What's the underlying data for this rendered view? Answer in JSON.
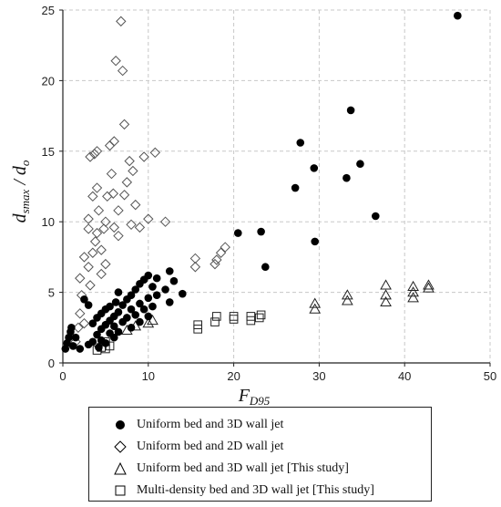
{
  "chart_data": {
    "type": "scatter",
    "title": "",
    "xlabel": "F",
    "xlabel_sub": "D95",
    "ylabel": "d",
    "ylabel_sub1": "smax",
    "ylabel_mid": " / ",
    "ylabel_sub2": "o",
    "xlim": [
      0,
      50
    ],
    "ylim": [
      0,
      25
    ],
    "x_ticks": [
      "0",
      "10",
      "20",
      "30",
      "40",
      "50"
    ],
    "y_ticks": [
      "0",
      "5",
      "10",
      "15",
      "20",
      "25"
    ],
    "grid": true,
    "legend_position": "bottom",
    "series": [
      {
        "name": "Uniform bed and 3D wall jet",
        "marker": "filled-circle",
        "color": "#000000",
        "points": [
          [
            0.3,
            1.0
          ],
          [
            0.5,
            1.4
          ],
          [
            0.7,
            1.8
          ],
          [
            0.9,
            2.2
          ],
          [
            1.0,
            2.5
          ],
          [
            1.2,
            1.2
          ],
          [
            1.5,
            1.8
          ],
          [
            2.0,
            1.0
          ],
          [
            2.5,
            4.5
          ],
          [
            3.0,
            1.3
          ],
          [
            3.0,
            4.1
          ],
          [
            3.5,
            1.5
          ],
          [
            3.5,
            2.8
          ],
          [
            4.0,
            2.0
          ],
          [
            4.0,
            3.2
          ],
          [
            4.2,
            1.1
          ],
          [
            4.5,
            1.6
          ],
          [
            4.5,
            2.4
          ],
          [
            4.5,
            3.5
          ],
          [
            5.0,
            1.4
          ],
          [
            5.0,
            2.7
          ],
          [
            5.0,
            3.8
          ],
          [
            5.5,
            2.1
          ],
          [
            5.5,
            3.0
          ],
          [
            5.5,
            4.0
          ],
          [
            6.0,
            1.8
          ],
          [
            6.0,
            2.6
          ],
          [
            6.0,
            3.3
          ],
          [
            6.2,
            4.3
          ],
          [
            6.5,
            2.2
          ],
          [
            6.5,
            3.6
          ],
          [
            6.5,
            5.0
          ],
          [
            7.0,
            2.9
          ],
          [
            7.0,
            4.1
          ],
          [
            7.5,
            3.2
          ],
          [
            7.5,
            4.5
          ],
          [
            8.0,
            2.5
          ],
          [
            8.0,
            3.8
          ],
          [
            8.0,
            4.8
          ],
          [
            8.5,
            3.4
          ],
          [
            8.5,
            5.2
          ],
          [
            9.0,
            2.9
          ],
          [
            9.0,
            4.2
          ],
          [
            9.0,
            5.6
          ],
          [
            9.5,
            3.8
          ],
          [
            9.5,
            5.9
          ],
          [
            10.0,
            3.3
          ],
          [
            10.0,
            4.6
          ],
          [
            10.0,
            6.2
          ],
          [
            10.5,
            4.0
          ],
          [
            10.5,
            5.4
          ],
          [
            11.0,
            4.8
          ],
          [
            11.0,
            6.0
          ],
          [
            12.0,
            5.2
          ],
          [
            12.5,
            6.5
          ],
          [
            12.5,
            4.3
          ],
          [
            13.0,
            5.8
          ],
          [
            14.0,
            4.9
          ],
          [
            20.5,
            9.2
          ],
          [
            23.2,
            9.3
          ],
          [
            23.7,
            6.8
          ],
          [
            27.2,
            12.4
          ],
          [
            27.8,
            15.6
          ],
          [
            29.4,
            13.8
          ],
          [
            29.5,
            8.6
          ],
          [
            33.2,
            13.1
          ],
          [
            33.7,
            17.9
          ],
          [
            34.8,
            14.1
          ],
          [
            36.6,
            10.4
          ],
          [
            46.2,
            24.6
          ]
        ]
      },
      {
        "name": "Uniform bed and 2D wall jet",
        "marker": "open-diamond",
        "color": "#000000",
        "points": [
          [
            1.5,
            1.5
          ],
          [
            1.8,
            2.5
          ],
          [
            2.0,
            3.5
          ],
          [
            2.0,
            6.0
          ],
          [
            2.2,
            4.8
          ],
          [
            2.5,
            7.5
          ],
          [
            2.5,
            2.8
          ],
          [
            3.0,
            6.8
          ],
          [
            3.0,
            9.5
          ],
          [
            3.0,
            10.2
          ],
          [
            3.2,
            5.5
          ],
          [
            3.2,
            14.6
          ],
          [
            3.5,
            7.8
          ],
          [
            3.5,
            11.8
          ],
          [
            3.7,
            14.8
          ],
          [
            3.8,
            8.6
          ],
          [
            4.0,
            9.2
          ],
          [
            4.0,
            12.4
          ],
          [
            4.0,
            15.0
          ],
          [
            4.2,
            10.8
          ],
          [
            4.5,
            6.3
          ],
          [
            4.5,
            8.0
          ],
          [
            4.8,
            9.5
          ],
          [
            5.0,
            7.0
          ],
          [
            5.0,
            10.0
          ],
          [
            5.2,
            11.8
          ],
          [
            5.5,
            15.4
          ],
          [
            5.7,
            13.4
          ],
          [
            5.9,
            12.0
          ],
          [
            6.0,
            9.6
          ],
          [
            6.0,
            15.7
          ],
          [
            6.2,
            21.4
          ],
          [
            6.5,
            10.8
          ],
          [
            6.5,
            9.0
          ],
          [
            6.8,
            24.2
          ],
          [
            7.0,
            20.7
          ],
          [
            7.2,
            11.9
          ],
          [
            7.2,
            16.9
          ],
          [
            7.5,
            12.8
          ],
          [
            7.8,
            14.3
          ],
          [
            8.0,
            9.8
          ],
          [
            8.2,
            13.6
          ],
          [
            8.5,
            11.2
          ],
          [
            9.0,
            9.6
          ],
          [
            9.5,
            14.6
          ],
          [
            10.0,
            10.2
          ],
          [
            10.8,
            14.9
          ],
          [
            12.0,
            10.0
          ],
          [
            15.5,
            7.4
          ],
          [
            15.5,
            6.8
          ],
          [
            17.8,
            7.0
          ],
          [
            18.0,
            7.3
          ],
          [
            18.5,
            7.8
          ],
          [
            19.0,
            8.2
          ]
        ]
      },
      {
        "name": "Uniform bed and 3D wall jet [This study]",
        "marker": "open-triangle",
        "color": "#000000",
        "points": [
          [
            7.5,
            2.3
          ],
          [
            8.5,
            2.6
          ],
          [
            10.0,
            2.8
          ],
          [
            10.5,
            3.0
          ],
          [
            29.5,
            3.8
          ],
          [
            29.5,
            4.2
          ],
          [
            33.3,
            4.4
          ],
          [
            33.3,
            4.8
          ],
          [
            37.8,
            4.3
          ],
          [
            37.8,
            4.8
          ],
          [
            37.8,
            5.5
          ],
          [
            41.0,
            4.6
          ],
          [
            41.0,
            5.0
          ],
          [
            41.0,
            5.4
          ],
          [
            42.8,
            5.3
          ],
          [
            42.8,
            5.5
          ]
        ]
      },
      {
        "name": "Multi-density bed and 3D wall jet [This study]",
        "marker": "open-square",
        "color": "#000000",
        "points": [
          [
            4.0,
            0.9
          ],
          [
            4.5,
            1.1
          ],
          [
            5.0,
            1.0
          ],
          [
            5.0,
            1.5
          ],
          [
            5.5,
            1.2
          ],
          [
            15.8,
            2.4
          ],
          [
            15.8,
            2.7
          ],
          [
            17.8,
            2.9
          ],
          [
            18.0,
            3.3
          ],
          [
            20.0,
            3.1
          ],
          [
            20.0,
            3.3
          ],
          [
            22.0,
            3.0
          ],
          [
            22.0,
            3.3
          ],
          [
            23.0,
            3.2
          ],
          [
            23.2,
            3.4
          ]
        ]
      }
    ]
  }
}
